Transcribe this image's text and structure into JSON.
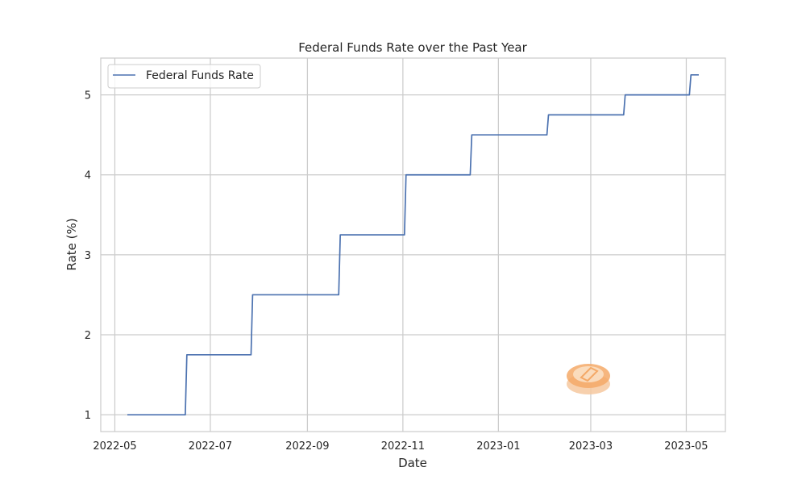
{
  "chart_data": {
    "type": "line",
    "title": "Federal Funds Rate over the Past Year",
    "xlabel": "Date",
    "ylabel": "Rate (%)",
    "x_ticks": [
      "2022-05-01",
      "2022-07-01",
      "2022-09-01",
      "2022-11-01",
      "2023-01-01",
      "2023-03-01",
      "2023-05-01"
    ],
    "x_tick_labels": [
      "2022-05",
      "2022-07",
      "2022-09",
      "2022-11",
      "2023-01",
      "2023-03",
      "2023-05"
    ],
    "y_ticks": [
      1,
      2,
      3,
      4,
      5
    ],
    "y_tick_labels": [
      "1",
      "2",
      "3",
      "4",
      "5"
    ],
    "xlim": [
      "2022-04-22",
      "2023-05-26"
    ],
    "ylim": [
      0.79,
      5.46
    ],
    "grid": true,
    "legend": "upper-left",
    "series": [
      {
        "name": "Federal Funds Rate",
        "color": "#4c72b0",
        "points": [
          [
            "2022-05-09",
            1.0
          ],
          [
            "2022-06-15",
            1.0
          ],
          [
            "2022-06-16",
            1.75
          ],
          [
            "2022-07-27",
            1.75
          ],
          [
            "2022-07-28",
            2.5
          ],
          [
            "2022-09-21",
            2.5
          ],
          [
            "2022-09-22",
            3.25
          ],
          [
            "2022-11-02",
            3.25
          ],
          [
            "2022-11-03",
            4.0
          ],
          [
            "2022-12-14",
            4.0
          ],
          [
            "2022-12-15",
            4.5
          ],
          [
            "2023-02-01",
            4.5
          ],
          [
            "2023-02-02",
            4.75
          ],
          [
            "2023-03-22",
            4.75
          ],
          [
            "2023-03-23",
            5.0
          ],
          [
            "2023-05-03",
            5.0
          ],
          [
            "2023-05-04",
            5.25
          ],
          [
            "2023-05-09",
            5.25
          ]
        ]
      }
    ]
  },
  "watermark": {
    "icon": "coin-logo-icon",
    "colors": [
      "#f6c89f",
      "#f4a967"
    ]
  }
}
